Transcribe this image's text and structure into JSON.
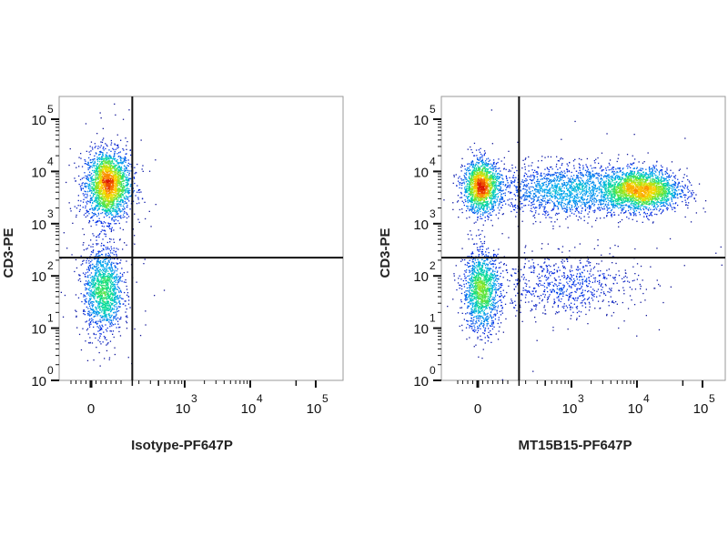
{
  "chart_data": [
    {
      "type": "scatter",
      "subtype": "flow-cytometry-density-dot-plot",
      "xlabel": "Isotype-PF647P",
      "ylabel": "CD3-PE",
      "x_scale": "biexponential (display decades; '0' at 1.57)",
      "y_scale": "log10",
      "x_ticks": [
        {
          "label": "0",
          "pos": 1.57
        },
        {
          "label": "10",
          "exp": "3",
          "pos": 3
        },
        {
          "label": "10",
          "exp": "4",
          "pos": 4
        },
        {
          "label": "10",
          "exp": "5",
          "pos": 5
        }
      ],
      "y_ticks": [
        {
          "label": "10",
          "exp": "0",
          "pos": 0
        },
        {
          "label": "10",
          "exp": "1",
          "pos": 1
        },
        {
          "label": "10",
          "exp": "2",
          "pos": 2
        },
        {
          "label": "10",
          "exp": "3",
          "pos": 3
        },
        {
          "label": "10",
          "exp": "4",
          "pos": 4
        },
        {
          "label": "10",
          "exp": "5",
          "pos": 5
        }
      ],
      "xlim": [
        1.1,
        5.4
      ],
      "ylim": [
        0,
        5.45
      ],
      "quadrant_gate": {
        "x": 2.2,
        "y": 2.35
      },
      "populations": [
        {
          "name": "CD3+ isotype-negative",
          "cx": 1.82,
          "cy": 3.75,
          "sx": 0.17,
          "sy": 0.33,
          "n": 2200
        },
        {
          "name": "CD3- isotype-negative",
          "cx": 1.75,
          "cy": 1.72,
          "sx": 0.15,
          "sy": 0.42,
          "n": 1300
        }
      ]
    },
    {
      "type": "scatter",
      "subtype": "flow-cytometry-density-dot-plot",
      "xlabel": "MT15B15-PF647P",
      "ylabel": "CD3-PE",
      "x_scale": "biexponential (display decades; '0' at 1.57)",
      "y_scale": "log10",
      "x_ticks": [
        {
          "label": "0",
          "pos": 1.57
        },
        {
          "label": "10",
          "exp": "3",
          "pos": 3
        },
        {
          "label": "10",
          "exp": "4",
          "pos": 4
        },
        {
          "label": "10",
          "exp": "5",
          "pos": 5
        }
      ],
      "y_ticks": [
        {
          "label": "10",
          "exp": "0",
          "pos": 0
        },
        {
          "label": "10",
          "exp": "1",
          "pos": 1
        },
        {
          "label": "10",
          "exp": "2",
          "pos": 2
        },
        {
          "label": "10",
          "exp": "3",
          "pos": 3
        },
        {
          "label": "10",
          "exp": "4",
          "pos": 4
        },
        {
          "label": "10",
          "exp": "5",
          "pos": 5
        }
      ],
      "xlim": [
        1.1,
        5.4
      ],
      "ylim": [
        0,
        5.45
      ],
      "quadrant_gate": {
        "x": 2.2,
        "y": 2.35
      },
      "populations": [
        {
          "name": "CD3+ MT15B15-negative",
          "cx": 1.62,
          "cy": 3.72,
          "sx": 0.14,
          "sy": 0.25,
          "n": 1500
        },
        {
          "name": "CD3+ MT15B15-bridge",
          "cx": 2.9,
          "cy": 3.65,
          "sx": 0.55,
          "sy": 0.25,
          "n": 1600
        },
        {
          "name": "CD3+ MT15B15-positive",
          "cx": 4.05,
          "cy": 3.65,
          "sx": 0.3,
          "sy": 0.2,
          "n": 2200
        },
        {
          "name": "CD3- MT15B15-negative",
          "cx": 1.62,
          "cy": 1.72,
          "sx": 0.14,
          "sy": 0.38,
          "n": 1300
        },
        {
          "name": "CD3- MT15B15-tail",
          "cx": 2.9,
          "cy": 1.85,
          "sx": 0.55,
          "sy": 0.3,
          "n": 700
        }
      ]
    }
  ]
}
